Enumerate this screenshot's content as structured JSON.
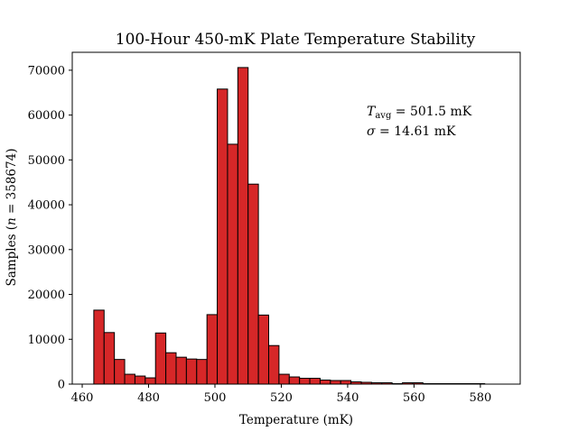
{
  "chart_data": {
    "type": "bar",
    "title": "100-Hour 450-mK Plate Temperature Stability",
    "xlabel": "Temperature (mK)",
    "ylabel": "Samples (n = 358674)",
    "ylabel_parts": {
      "before": "Samples (",
      "n_symbol": "n",
      "after": " = 358674)"
    },
    "xlim": [
      457,
      592
    ],
    "ylim": [
      0,
      74000
    ],
    "x_ticks": [
      460,
      480,
      500,
      520,
      540,
      560,
      580
    ],
    "y_ticks": [
      0,
      10000,
      20000,
      30000,
      40000,
      50000,
      60000,
      70000
    ],
    "bin_start": 463.5,
    "bin_width": 3.1,
    "values": [
      16500,
      11500,
      5500,
      2200,
      1800,
      1400,
      11400,
      7000,
      6000,
      5600,
      5500,
      15500,
      65800,
      53500,
      70600,
      44600,
      15400,
      8600,
      2200,
      1600,
      1300,
      1300,
      900,
      800,
      800,
      500,
      400,
      300,
      300,
      100,
      300,
      300,
      100,
      100,
      100,
      100,
      100,
      100
    ],
    "bar_color": "#d62728",
    "annotations": {
      "tavg": {
        "symbol": "T",
        "subscript": "avg",
        "text": " = 501.5 mK"
      },
      "sigma": {
        "symbol": "σ",
        "text": " = 14.61 mK"
      }
    },
    "grid": false,
    "legend": "none"
  }
}
